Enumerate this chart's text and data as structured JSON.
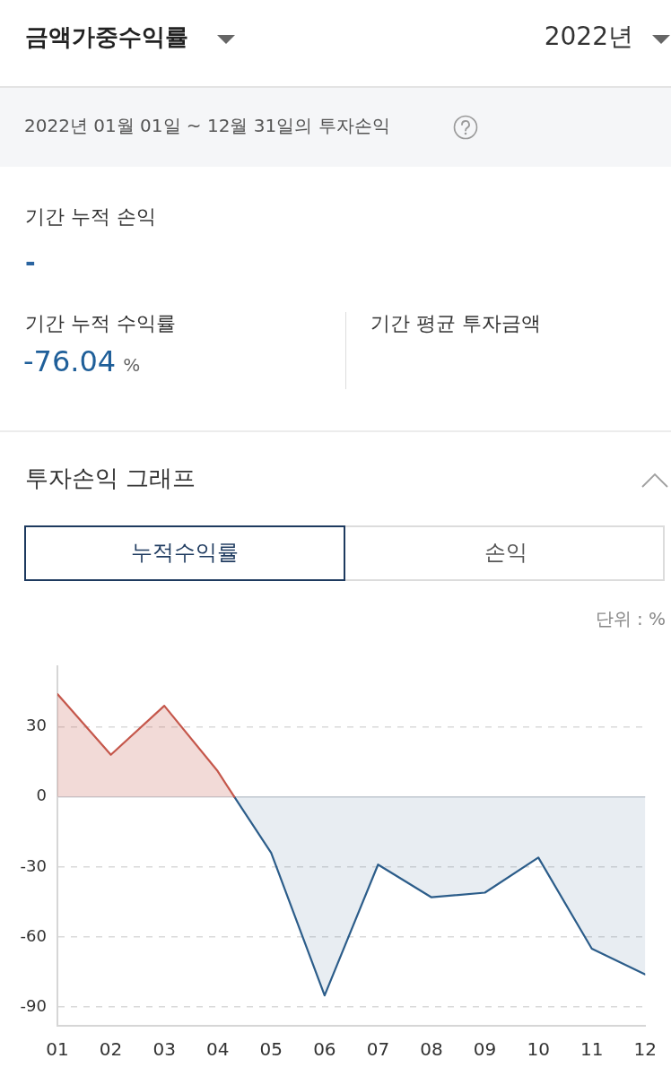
{
  "chart_data": {
    "type": "area",
    "title": "투자손익 그래프",
    "subtitle": "2022년 01월 01일 ~ 12월 31일의 투자손익",
    "ylabel": "단위 : %",
    "annotations": [
      "금액가중수익률",
      "2022년",
      "기간 누적 손익",
      "-",
      "기간 누적 수익률",
      "-76.04",
      "%",
      "기간 평균 투자금액",
      "누적수익률",
      "손익"
    ],
    "series": [
      {
        "color": "#c5574b",
        "x": [
          1,
          2,
          3,
          4,
          4.31
        ],
        "values": [
          44,
          18,
          39,
          11,
          0
        ]
      },
      {
        "color": "#2c5d8a",
        "x": [
          4.31,
          5,
          6,
          7,
          8,
          9,
          10,
          11,
          12
        ],
        "values": [
          0,
          -24,
          -85,
          -29,
          -43,
          -41,
          -26,
          -65,
          -76
        ]
      }
    ],
    "xlim": [
      1,
      12
    ],
    "xticks": [
      {
        "value": 1,
        "label": "01"
      },
      {
        "value": 2,
        "label": "02"
      },
      {
        "value": 3,
        "label": "03"
      },
      {
        "value": 4,
        "label": "04"
      },
      {
        "value": 5,
        "label": "05"
      },
      {
        "value": 6,
        "label": "06"
      },
      {
        "value": 7,
        "label": "07"
      },
      {
        "value": 8,
        "label": "08"
      },
      {
        "value": 9,
        "label": "09"
      },
      {
        "value": 10,
        "label": "10"
      },
      {
        "value": 11,
        "label": "11"
      },
      {
        "value": 12,
        "label": "12"
      }
    ],
    "ylim": [
      -98,
      56
    ],
    "yticks": [
      30,
      0,
      -30,
      -60,
      -90
    ],
    "grid": "y",
    "legend": false,
    "marker": "none",
    "line_style": "solid"
  }
}
